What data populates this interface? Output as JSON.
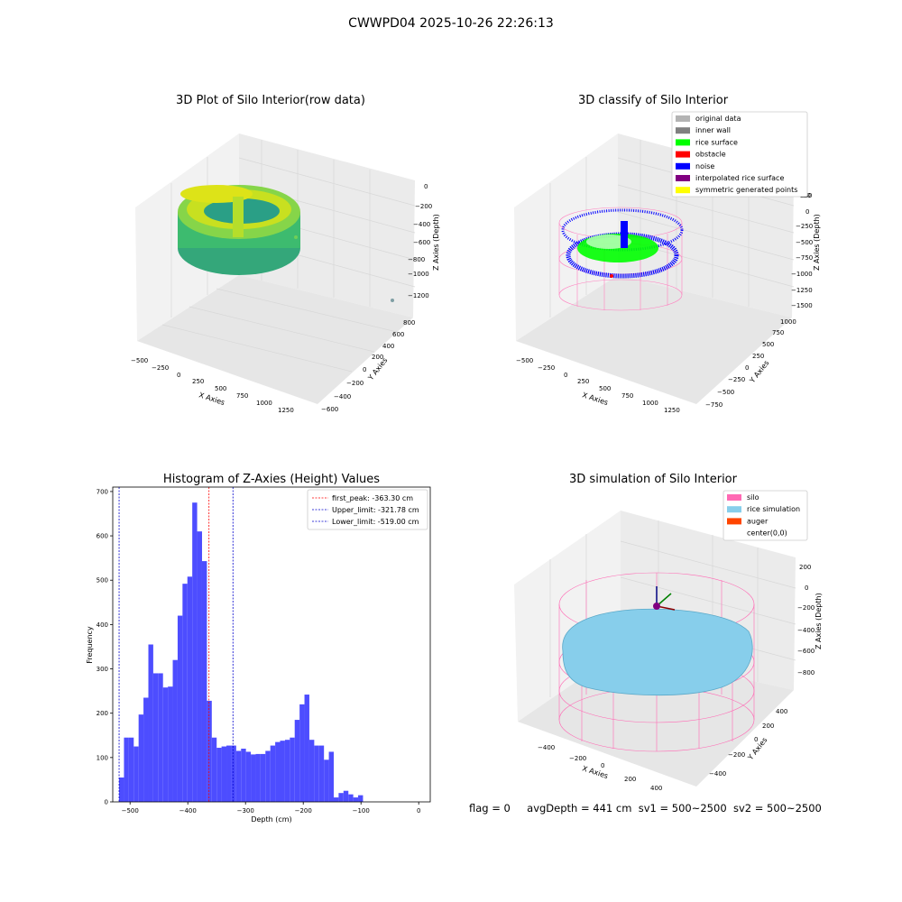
{
  "suptitle": "CWWPD04 2025-10-26 22:26:13",
  "footer": {
    "flag": "flag = 0",
    "avg_depth": "avgDepth = 441 cm",
    "sv1": "sv1 = 500~2500",
    "sv2": "sv2 = 500~2500"
  },
  "chart_data": [
    {
      "type": "scatter",
      "projection": "3d",
      "title": "3D Plot of Silo Interior(row data)",
      "xlabel": "X Axies",
      "ylabel": "Y Axies",
      "zlabel": "Z Axies (Depth)",
      "x_ticks": [
        "−500",
        "−250",
        "0",
        "250",
        "500",
        "750",
        "1000",
        "1250"
      ],
      "y_ticks": [
        "−600",
        "−400",
        "−200",
        "0",
        "200",
        "400",
        "600",
        "800"
      ],
      "z_ticks": [
        "−1200",
        "−1000",
        "−800",
        "−600",
        "−400",
        "−200",
        "0"
      ],
      "colormap": "viridis"
    },
    {
      "type": "scatter",
      "projection": "3d",
      "title": "3D classify of Silo Interior",
      "xlabel": "X Axies",
      "ylabel": "Y Axies",
      "zlabel": "Z Axies (Depth)",
      "x_ticks": [
        "−500",
        "−250",
        "0",
        "250",
        "500",
        "750",
        "1000",
        "1250"
      ],
      "y_ticks": [
        "−750",
        "−500",
        "−250",
        "0",
        "250",
        "500",
        "750",
        "1000"
      ],
      "z_ticks": [
        "−1500",
        "−1250",
        "−1000",
        "−750",
        "−500",
        "−250",
        "0",
        "250"
      ],
      "z_tick_partial": "50",
      "legend_position": "top-right",
      "legend": [
        {
          "name": "original data",
          "color": "#b3b3b3"
        },
        {
          "name": "inner wall",
          "color": "#808080"
        },
        {
          "name": "rice surface",
          "color": "#00ff00"
        },
        {
          "name": "obstacle",
          "color": "#ff0000"
        },
        {
          "name": "noise",
          "color": "#0000ff"
        },
        {
          "name": "interpolated rice surface",
          "color": "#800080"
        },
        {
          "name": "symmetric generated points",
          "color": "#ffff00"
        }
      ]
    },
    {
      "type": "bar",
      "title": "Histogram of Z-Axies (Height) Values",
      "xlabel": "Depth (cm)",
      "ylabel": "Frequency",
      "xlim": [
        -530,
        20
      ],
      "ylim": [
        0,
        710
      ],
      "x_ticks": [
        -500,
        -400,
        -300,
        -200,
        -100,
        0
      ],
      "x_tick_labels": [
        "−500",
        "−400",
        "−300",
        "−200",
        "−100",
        "0"
      ],
      "y_ticks": [
        0,
        100,
        200,
        300,
        400,
        500,
        600,
        700
      ],
      "bar_color": "#4d4dff",
      "bin_start": -519,
      "bin_width": 8.45,
      "values": [
        55,
        145,
        145,
        125,
        197,
        235,
        355,
        290,
        290,
        258,
        260,
        320,
        420,
        492,
        508,
        675,
        610,
        543,
        228,
        145,
        122,
        125,
        127,
        127,
        115,
        120,
        113,
        107,
        108,
        108,
        115,
        127,
        135,
        138,
        140,
        145,
        185,
        220,
        242,
        140,
        127,
        127,
        95,
        113,
        10,
        20,
        25,
        17,
        10,
        15
      ],
      "vlines": [
        {
          "x": -363.3,
          "color": "#ff0000",
          "label": "first_peak: -363.30 cm"
        },
        {
          "x": -321.78,
          "color": "#0000cc",
          "label": "Upper_limit: -321.78 cm"
        },
        {
          "x": -519.0,
          "color": "#0000cc",
          "label": "Lower_limit: -519.00 cm"
        }
      ],
      "legend_position": "top-right"
    },
    {
      "type": "surface",
      "projection": "3d",
      "title": "3D simulation of Silo Interior",
      "xlabel": "X Axies",
      "ylabel": "Y Axies",
      "zlabel": "Z Axies (Depth)",
      "x_ticks": [
        "−400",
        "−200",
        "0",
        "200",
        "400"
      ],
      "y_ticks": [
        "−400",
        "−200",
        "0",
        "200",
        "400"
      ],
      "z_ticks": [
        "−800",
        "−600",
        "−400",
        "−200",
        "0",
        "200"
      ],
      "legend_position": "top-right",
      "legend": [
        {
          "name": "silo",
          "color": "#ff69b4"
        },
        {
          "name": "rice simulation",
          "color": "#87ceeb"
        },
        {
          "name": "auger",
          "color": "#ff4500"
        },
        {
          "name": "center(0,0)",
          "color": ""
        }
      ]
    }
  ]
}
